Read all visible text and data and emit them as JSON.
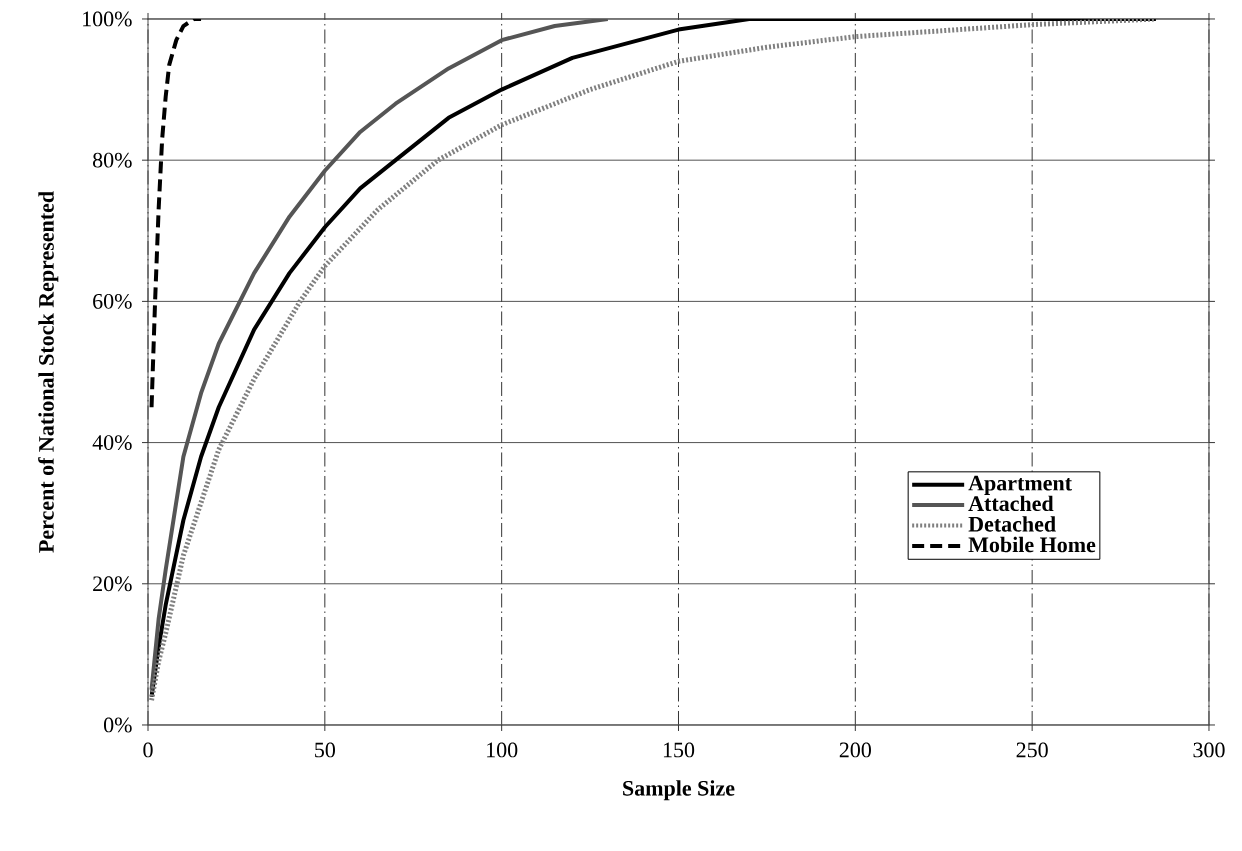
{
  "chart_data": {
    "type": "line",
    "xlabel": "Sample Size",
    "ylabel": "Percent of National Stock Represented",
    "xlim": [
      0,
      300
    ],
    "ylim": [
      0,
      100
    ],
    "xticks": [
      0,
      50,
      100,
      150,
      200,
      250,
      300
    ],
    "yticks": [
      {
        "value": 0,
        "label": "0%"
      },
      {
        "value": 20,
        "label": "20%"
      },
      {
        "value": 40,
        "label": "40%"
      },
      {
        "value": 60,
        "label": "60%"
      },
      {
        "value": 80,
        "label": "80%"
      },
      {
        "value": 100,
        "label": "100%"
      }
    ],
    "grid": true,
    "legend": "right",
    "marker": "none",
    "series": [
      {
        "name": "Apartment",
        "color": "#000000",
        "line_style": "solid",
        "x": [
          1,
          3,
          5,
          10,
          15,
          20,
          30,
          40,
          50,
          60,
          70,
          85,
          100,
          120,
          150,
          170,
          200,
          250,
          285
        ],
        "values": [
          4,
          11,
          17,
          29,
          38,
          45,
          56,
          64,
          70.5,
          76,
          80,
          86,
          90,
          94.5,
          98.5,
          100,
          100,
          100,
          100
        ]
      },
      {
        "name": "Attached",
        "color": "#555555",
        "line_style": "solid",
        "x": [
          1,
          3,
          5,
          10,
          15,
          20,
          30,
          40,
          50,
          60,
          70,
          85,
          100,
          115,
          130
        ],
        "values": [
          5,
          15,
          22,
          38,
          47,
          54,
          64,
          72,
          78.5,
          84,
          88,
          93,
          97,
          99,
          100
        ]
      },
      {
        "name": "Detached",
        "color": "#808080",
        "line_style": "dotted",
        "x": [
          1,
          3,
          5,
          10,
          20,
          30,
          43,
          50,
          65,
          82,
          100,
          125,
          150,
          175,
          200,
          250,
          285
        ],
        "values": [
          3.5,
          9,
          13,
          24,
          39,
          49,
          60,
          65,
          73,
          80,
          85,
          90,
          94,
          96,
          97.5,
          99.2,
          100
        ]
      },
      {
        "name": "Mobile Home",
        "color": "#000000",
        "line_style": "dashed",
        "x": [
          1,
          2,
          3,
          4,
          5,
          6,
          8,
          10,
          13,
          15
        ],
        "values": [
          45,
          60,
          73,
          83,
          89,
          93.5,
          97,
          99,
          100,
          100
        ]
      }
    ]
  }
}
